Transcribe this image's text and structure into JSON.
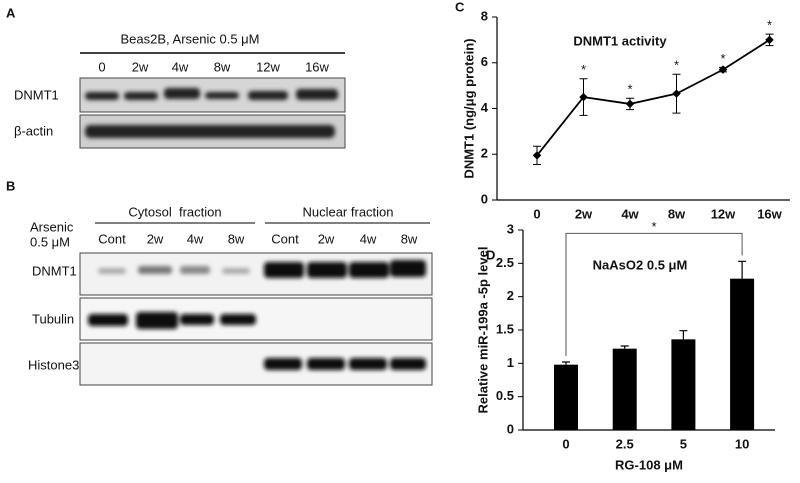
{
  "panel_a": {
    "label": "A",
    "title": "Beas2B, Arsenic 0.5 μM",
    "lanes": [
      "0",
      "2w",
      "4w",
      "8w",
      "12w",
      "16w"
    ],
    "rows": [
      "DNMT1",
      "β-actin"
    ]
  },
  "panel_b": {
    "label": "B",
    "treatment": [
      "Arsenic",
      "0.5 μM"
    ],
    "groups": [
      "Cytosol  fraction",
      "Nuclear fraction"
    ],
    "lanes": [
      "Cont",
      "2w",
      "4w",
      "8w",
      "Cont",
      "2w",
      "4w",
      "8w"
    ],
    "rows": [
      "DNMT1",
      "Tubulin",
      "Histone3"
    ]
  },
  "chart_data": [
    {
      "type": "line",
      "panel_label": "C",
      "title": "DNMT1 activity",
      "y_label": "DNMT1 (ng/μg protein)",
      "categories": [
        "0",
        "2w",
        "4w",
        "8w",
        "12w",
        "16w"
      ],
      "values": [
        1.95,
        4.5,
        4.2,
        4.65,
        5.7,
        7.0
      ],
      "errors": [
        0.4,
        0.8,
        0.25,
        0.85,
        0.1,
        0.25
      ],
      "annotation_marks": [
        null,
        "*",
        "*",
        "*",
        "*",
        "*"
      ],
      "color": "#000000",
      "ylim": [
        0,
        8
      ],
      "yticks": [
        0,
        2,
        4,
        6,
        8
      ]
    },
    {
      "type": "bar",
      "panel_label": "D",
      "title": "NaAsO2 0.5 μM",
      "x_label": "RG-108 μM",
      "y_label": "Relative miR-199a -5p level",
      "categories": [
        "0",
        "2.5",
        "5",
        "10"
      ],
      "values": [
        0.98,
        1.22,
        1.36,
        2.27
      ],
      "errors": [
        0.04,
        0.04,
        0.13,
        0.26
      ],
      "bracket_label": "*",
      "color": "#000000",
      "ylim": [
        0,
        3
      ],
      "yticks": [
        0,
        0.5,
        1,
        1.5,
        2,
        2.5,
        3
      ]
    }
  ]
}
